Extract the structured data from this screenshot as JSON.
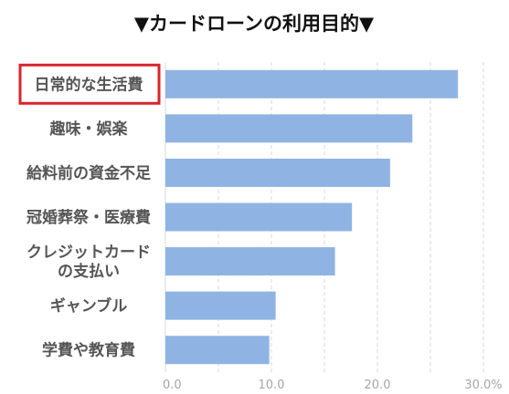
{
  "chart_data": {
    "type": "bar",
    "orientation": "horizontal",
    "title": "▼カードローンの利用目的▼",
    "categories": [
      "日常的な生活費",
      "趣味・娯楽",
      "給料前の資金不足",
      "冠婚葬祭・医療費",
      "クレジットカード\nの支払い",
      "ギャンブル",
      "学費や教育費"
    ],
    "values": [
      27.6,
      23.3,
      21.2,
      17.6,
      16.0,
      10.4,
      9.8
    ],
    "xlim": [
      0,
      30
    ],
    "xticks": [
      "0.0",
      "10.0",
      "20.0",
      "30.0%"
    ],
    "grid": "vertical-dashed",
    "highlight_category": "日常的な生活費",
    "colors": {
      "bar": "#8fb4e3",
      "grid": "#d9d9d9",
      "highlight_box": "#d9242b",
      "category_text": "#555555",
      "tick_text": "#a6a6a6"
    }
  }
}
